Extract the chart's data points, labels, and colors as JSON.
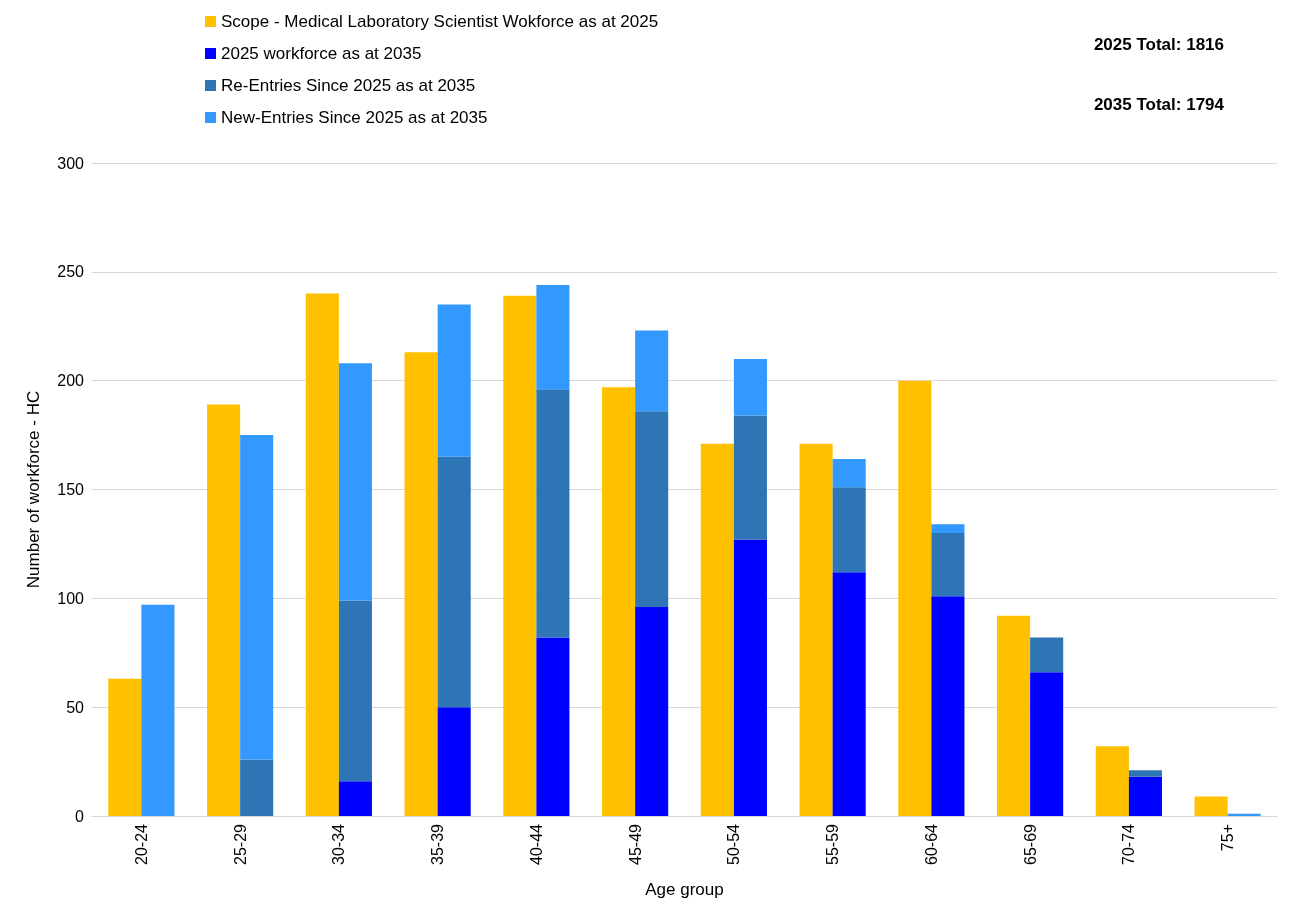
{
  "chart_data": {
    "type": "bar",
    "xlabel": "Age group",
    "ylabel": "Number of workforce - HC",
    "categories": [
      "20-24",
      "25-29",
      "30-34",
      "35-39",
      "40-44",
      "45-49",
      "50-54",
      "55-59",
      "60-64",
      "65-69",
      "70-74",
      "75+"
    ],
    "series": [
      {
        "name": "Scope - Medical Laboratory Scientist Wokforce as at 2025",
        "color": "#ffc000",
        "values": [
          63,
          189,
          240,
          213,
          239,
          197,
          171,
          171,
          200,
          92,
          32,
          9
        ]
      },
      {
        "name": "2025 workforce as at 2035",
        "color": "#0000ff",
        "values": [
          null,
          null,
          16,
          50,
          82,
          96,
          127,
          112,
          101,
          66,
          18,
          null
        ],
        "base": [
          null,
          null,
          0,
          0,
          0,
          0,
          0,
          0,
          0,
          0,
          0,
          null
        ]
      },
      {
        "name": "Re-Entries Since 2025 as at 2035",
        "color": "#2e75b6",
        "values": [
          null,
          26,
          83,
          115,
          114,
          90,
          57,
          39,
          29,
          16,
          3,
          null
        ],
        "base": [
          null,
          0,
          16,
          50,
          82,
          96,
          127,
          112,
          101,
          66,
          18,
          null
        ]
      },
      {
        "name": "New-Entries Since 2025 as at 2035",
        "color": "#3399ff",
        "values": [
          97,
          149,
          109,
          70,
          48,
          37,
          26,
          13,
          4,
          null,
          null,
          1
        ],
        "base": [
          0,
          26,
          99,
          165,
          196,
          186,
          184,
          151,
          130,
          null,
          null,
          0
        ]
      }
    ],
    "ylim": [
      0,
      300
    ],
    "yticks": [
      0,
      50,
      100,
      150,
      200,
      250,
      300
    ],
    "grid": "y",
    "legend": "top left",
    "annotations": [
      "2025 Total: 1816",
      "2035 Total: 1794"
    ]
  }
}
